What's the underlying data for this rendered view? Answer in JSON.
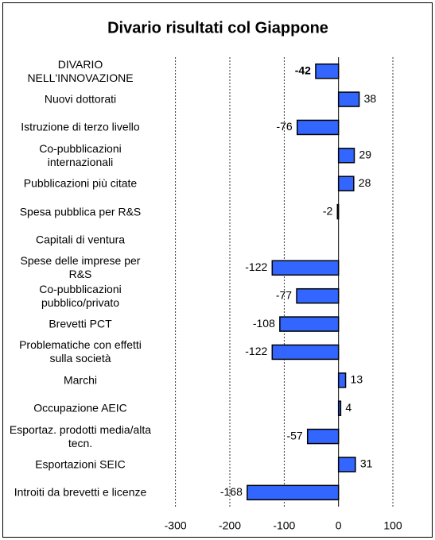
{
  "chart_data": {
    "type": "bar",
    "orientation": "horizontal",
    "title": "Divario risultati col Giappone",
    "categories": [
      "DIVARIO NELL'INNOVAZIONE",
      "Nuovi dottorati",
      "Istruzione di terzo livello",
      "Co-pubblicazioni internazionali",
      "Pubblicazioni più citate",
      "Spesa pubblica per R&S",
      "Capitali di ventura",
      "Spese delle imprese per R&S",
      "Co-pubblicazioni pubblico/privato",
      "Brevetti PCT",
      "Problematiche con effetti sulla società",
      "Marchi",
      "Occupazione AEIC",
      "Esportaz. prodotti media/alta tecn.",
      "Esportazioni SEIC",
      "Introiti da brevetti e licenze"
    ],
    "values": [
      -42,
      38,
      -76,
      29,
      28,
      -2,
      null,
      -122,
      -77,
      -108,
      -122,
      13,
      4,
      -57,
      31,
      -168
    ],
    "color": "#3366ff",
    "xlim": [
      -320,
      160
    ],
    "xticks": [
      -300,
      -200,
      -100,
      0,
      100
    ],
    "grid": true
  }
}
